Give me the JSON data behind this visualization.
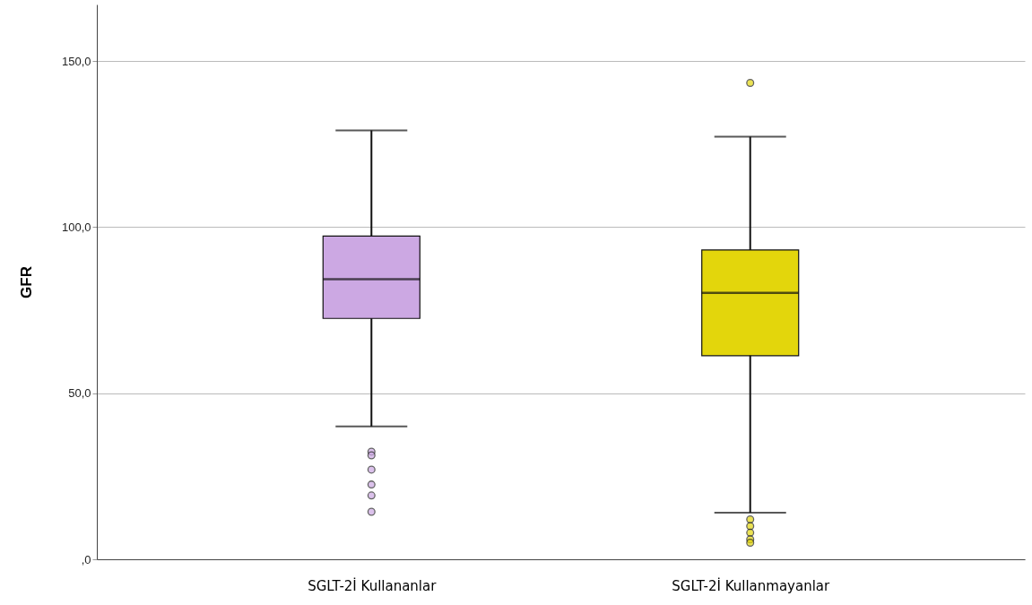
{
  "chart_data": {
    "type": "box",
    "ylabel": "GFR",
    "categories": [
      "SGLT-2İ Kullananlar",
      "SGLT-2İ Kullanmayanlar"
    ],
    "colors": [
      "#cca8e3",
      "#e3d60c"
    ],
    "boxes": [
      {
        "low": 40,
        "q1": 72.5,
        "median": 84.3,
        "q3": 97.3,
        "high": 129.1,
        "outliers": [
          32.4,
          31.3,
          27,
          22.5,
          19.2,
          14.3
        ]
      },
      {
        "low": 14,
        "q1": 61.3,
        "median": 80.2,
        "q3": 93.1,
        "high": 127.2,
        "outliers": [
          143.4,
          12,
          10,
          8,
          6,
          5
        ]
      }
    ],
    "ylim": [
      0,
      167
    ],
    "yticks": [
      {
        "value": 0,
        "label": ",0"
      },
      {
        "value": 50,
        "label": "50,0"
      },
      {
        "value": 100,
        "label": "100,0"
      },
      {
        "value": 150,
        "label": "150,0"
      }
    ],
    "grid": "y"
  }
}
